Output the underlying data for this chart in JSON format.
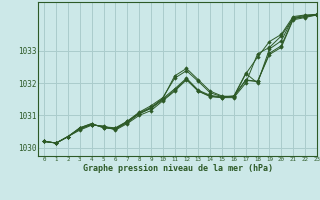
{
  "title": "Graphe pression niveau de la mer (hPa)",
  "bg_color": "#cce8e8",
  "grid_color": "#aacccc",
  "line_color": "#2d5a27",
  "marker_color": "#2d5a27",
  "xlim": [
    -0.5,
    23
  ],
  "ylim": [
    1029.75,
    1034.5
  ],
  "yticks": [
    1030,
    1031,
    1032,
    1033
  ],
  "xticks": [
    0,
    1,
    2,
    3,
    4,
    5,
    6,
    7,
    8,
    9,
    10,
    11,
    12,
    13,
    14,
    15,
    16,
    17,
    18,
    19,
    20,
    21,
    22,
    23
  ],
  "series": [
    [
      1030.2,
      1030.15,
      1030.35,
      1030.55,
      1030.7,
      1030.68,
      1030.55,
      1030.75,
      1031.0,
      1031.15,
      1031.45,
      1031.75,
      1032.1,
      1031.75,
      1031.6,
      1031.55,
      1031.55,
      1032.0,
      1032.9,
      1033.1,
      1033.45,
      1034.0,
      1034.05,
      1034.1
    ],
    [
      1030.2,
      1030.15,
      1030.35,
      1030.58,
      1030.72,
      1030.65,
      1030.58,
      1030.78,
      1031.05,
      1031.22,
      1031.52,
      1032.22,
      1032.45,
      1032.1,
      1031.75,
      1031.6,
      1031.58,
      1032.28,
      1032.8,
      1033.28,
      1033.5,
      1034.05,
      1034.1,
      1034.12
    ],
    [
      1030.2,
      1030.15,
      1030.35,
      1030.6,
      1030.72,
      1030.65,
      1030.62,
      1030.82,
      1031.1,
      1031.3,
      1031.55,
      1032.15,
      1032.38,
      1032.05,
      1031.7,
      1031.58,
      1031.6,
      1032.3,
      1032.0,
      1033.05,
      1033.3,
      1034.02,
      1034.08,
      1034.1
    ],
    [
      1030.2,
      1030.15,
      1030.35,
      1030.62,
      1030.75,
      1030.62,
      1030.6,
      1030.82,
      1031.08,
      1031.25,
      1031.52,
      1031.82,
      1032.15,
      1031.78,
      1031.62,
      1031.57,
      1031.6,
      1032.1,
      1032.05,
      1032.92,
      1033.15,
      1033.98,
      1034.05,
      1034.12
    ],
    [
      1030.2,
      1030.15,
      1030.35,
      1030.62,
      1030.75,
      1030.62,
      1030.58,
      1030.8,
      1031.06,
      1031.22,
      1031.48,
      1031.78,
      1032.12,
      1031.75,
      1031.58,
      1031.55,
      1031.58,
      1032.08,
      1032.05,
      1032.88,
      1033.1,
      1033.95,
      1034.02,
      1034.1
    ]
  ]
}
